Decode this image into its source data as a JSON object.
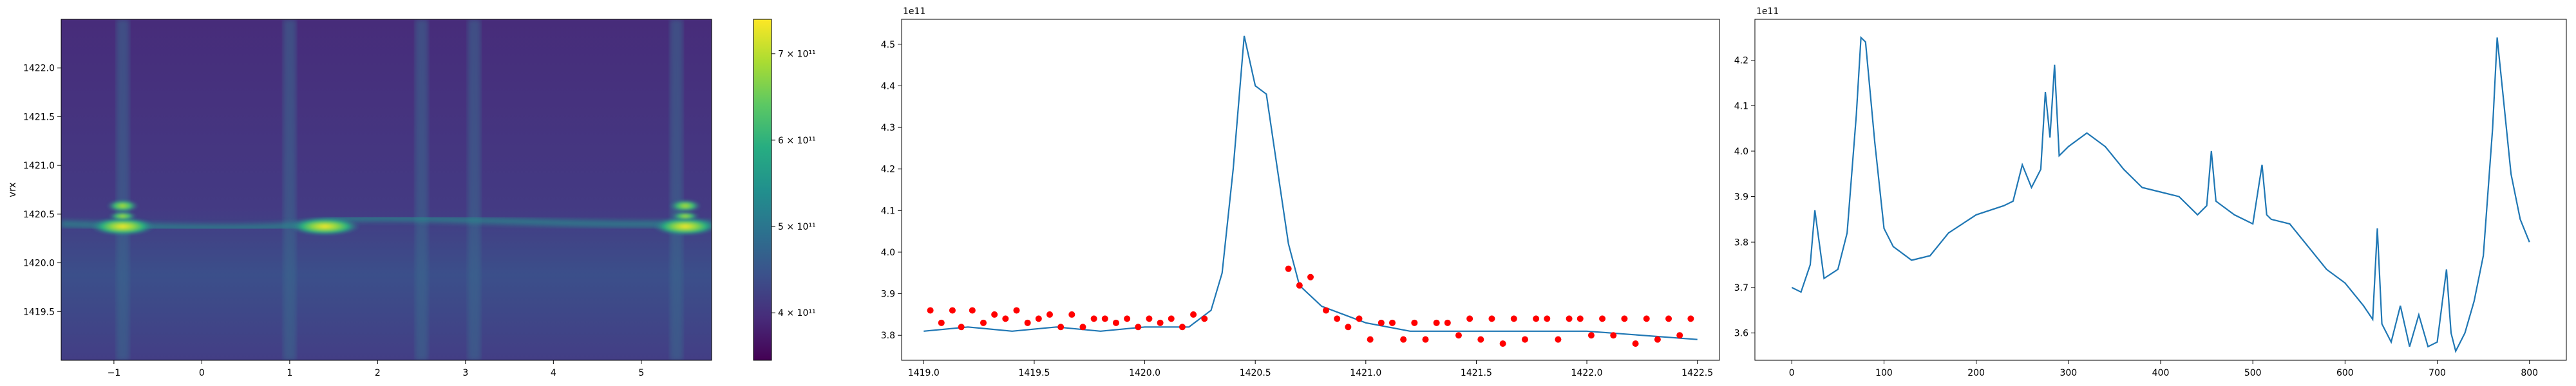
{
  "colors": {
    "line": "#1f77b4",
    "peaks": "#ff0000",
    "viridis": [
      "#440154",
      "#472c7a",
      "#3b518b",
      "#2c718e",
      "#21908d",
      "#27ad81",
      "#5cc863",
      "#aadc32",
      "#fde725"
    ]
  },
  "chart_data": [
    {
      "type": "heatmap",
      "title": "",
      "xlabel": "",
      "ylabel": "vrx",
      "xlim": [
        -1.6,
        5.8
      ],
      "ylim": [
        1419.0,
        1422.5
      ],
      "x_ticks": [
        "-1",
        "0",
        "1",
        "2",
        "3",
        "4",
        "5"
      ],
      "y_ticks": [
        "1419.5",
        "1420.0",
        "1420.5",
        "1421.0",
        "1421.5",
        "1422.0"
      ],
      "colorbar": {
        "range": [
          345000000000.0,
          740000000000.0
        ],
        "ticks": [
          "4 × 10¹¹",
          "5 × 10¹¹",
          "6 × 10¹¹",
          "7 × 10¹¹"
        ],
        "tick_values": [
          400000000000.0,
          500000000000.0,
          600000000000.0,
          700000000000.0
        ]
      },
      "ridge": {
        "center_y": 1420.4,
        "bright_spots_x": [
          -0.9,
          1.4,
          5.5
        ]
      },
      "vertical_bands_x": [
        -0.9,
        1.0,
        2.5,
        3.1,
        5.4
      ]
    },
    {
      "type": "line",
      "title": "",
      "xlabel": "",
      "ylabel": "",
      "offset_text": "1e11",
      "xlim": [
        1418.9,
        1422.6
      ],
      "ylim": [
        3.74,
        4.56
      ],
      "x_ticks": [
        "1419.0",
        "1419.5",
        "1420.0",
        "1420.5",
        "1421.0",
        "1421.5",
        "1422.0",
        "1422.5"
      ],
      "y_ticks": [
        "3.8",
        "3.9",
        "4.0",
        "4.1",
        "4.2",
        "4.3",
        "4.4",
        "4.5"
      ],
      "x": [
        1419.0,
        1419.2,
        1419.4,
        1419.6,
        1419.8,
        1420.0,
        1420.2,
        1420.3,
        1420.35,
        1420.4,
        1420.45,
        1420.5,
        1420.55,
        1420.6,
        1420.65,
        1420.7,
        1420.8,
        1421.0,
        1421.2,
        1421.5,
        1422.0,
        1422.5
      ],
      "values": [
        3.81,
        3.82,
        3.81,
        3.82,
        3.81,
        3.82,
        3.82,
        3.86,
        3.95,
        4.2,
        4.52,
        4.4,
        4.38,
        4.2,
        4.02,
        3.92,
        3.87,
        3.83,
        3.81,
        3.81,
        3.81,
        3.79
      ],
      "peaks_x": [
        1419.03,
        1419.08,
        1419.13,
        1419.17,
        1419.22,
        1419.27,
        1419.32,
        1419.37,
        1419.42,
        1419.47,
        1419.52,
        1419.57,
        1419.62,
        1419.67,
        1419.72,
        1419.77,
        1419.82,
        1419.87,
        1419.92,
        1419.97,
        1420.02,
        1420.07,
        1420.12,
        1420.17,
        1420.22,
        1420.27,
        1420.65,
        1420.7,
        1420.75,
        1420.82,
        1420.87,
        1420.92,
        1420.97,
        1421.02,
        1421.07,
        1421.12,
        1421.17,
        1421.22,
        1421.27,
        1421.32,
        1421.37,
        1421.42,
        1421.47,
        1421.52,
        1421.57,
        1421.62,
        1421.67,
        1421.72,
        1421.77,
        1421.82,
        1421.87,
        1421.92,
        1421.97,
        1422.02,
        1422.07,
        1422.12,
        1422.17,
        1422.22,
        1422.27,
        1422.32,
        1422.37,
        1422.42,
        1422.47
      ],
      "peaks_y": [
        3.86,
        3.83,
        3.86,
        3.82,
        3.86,
        3.83,
        3.85,
        3.84,
        3.86,
        3.83,
        3.84,
        3.85,
        3.82,
        3.85,
        3.82,
        3.84,
        3.84,
        3.83,
        3.84,
        3.82,
        3.84,
        3.83,
        3.84,
        3.82,
        3.85,
        3.84,
        3.96,
        3.92,
        3.94,
        3.86,
        3.84,
        3.82,
        3.84,
        3.79,
        3.83,
        3.83,
        3.79,
        3.83,
        3.79,
        3.83,
        3.83,
        3.8,
        3.84,
        3.79,
        3.84,
        3.78,
        3.84,
        3.79,
        3.84,
        3.84,
        3.79,
        3.84,
        3.84,
        3.8,
        3.84,
        3.8,
        3.84,
        3.78,
        3.84,
        3.79,
        3.84,
        3.8,
        3.84
      ]
    },
    {
      "type": "line",
      "title": "",
      "xlabel": "",
      "ylabel": "",
      "offset_text": "1e11",
      "xlim": [
        -40,
        840
      ],
      "ylim": [
        3.54,
        4.29
      ],
      "x_ticks": [
        "0",
        "100",
        "200",
        "300",
        "400",
        "500",
        "600",
        "700",
        "800"
      ],
      "y_ticks": [
        "3.6",
        "3.7",
        "3.8",
        "3.9",
        "4.0",
        "4.1",
        "4.2"
      ],
      "x": [
        0,
        10,
        20,
        25,
        35,
        50,
        60,
        70,
        75,
        80,
        90,
        100,
        110,
        130,
        150,
        170,
        200,
        230,
        240,
        250,
        260,
        270,
        275,
        280,
        285,
        290,
        300,
        320,
        340,
        360,
        380,
        400,
        420,
        440,
        450,
        455,
        460,
        480,
        500,
        510,
        515,
        520,
        540,
        560,
        580,
        600,
        620,
        630,
        635,
        640,
        650,
        660,
        670,
        680,
        690,
        700,
        710,
        715,
        720,
        730,
        740,
        750,
        760,
        765,
        770,
        780,
        790,
        800
      ],
      "values": [
        3.7,
        3.69,
        3.75,
        3.87,
        3.72,
        3.74,
        3.82,
        4.08,
        4.25,
        4.24,
        4.02,
        3.83,
        3.79,
        3.76,
        3.77,
        3.82,
        3.86,
        3.88,
        3.89,
        3.97,
        3.92,
        3.96,
        4.13,
        4.03,
        4.19,
        3.99,
        4.01,
        4.04,
        4.01,
        3.96,
        3.92,
        3.91,
        3.9,
        3.86,
        3.88,
        4.0,
        3.89,
        3.86,
        3.84,
        3.97,
        3.86,
        3.85,
        3.84,
        3.79,
        3.74,
        3.71,
        3.66,
        3.63,
        3.83,
        3.62,
        3.58,
        3.66,
        3.57,
        3.64,
        3.57,
        3.58,
        3.74,
        3.6,
        3.56,
        3.6,
        3.67,
        3.77,
        4.05,
        4.25,
        4.15,
        3.95,
        3.85,
        3.8
      ]
    }
  ]
}
